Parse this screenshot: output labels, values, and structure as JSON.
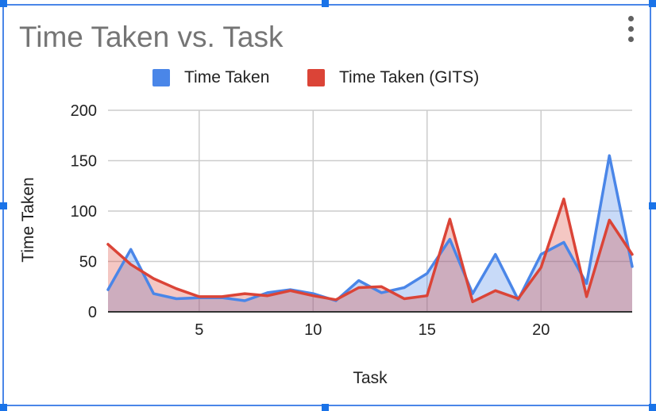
{
  "chart_data": {
    "type": "area",
    "title": "Time Taken vs. Task",
    "xlabel": "Task",
    "ylabel": "Time Taken",
    "xlim": [
      1,
      24
    ],
    "ylim": [
      0,
      200
    ],
    "x_ticks": [
      5,
      10,
      15,
      20
    ],
    "y_ticks": [
      0,
      50,
      100,
      150,
      200
    ],
    "grid": true,
    "legend_position": "top",
    "x": [
      1,
      2,
      3,
      4,
      5,
      6,
      7,
      8,
      9,
      10,
      11,
      12,
      13,
      14,
      15,
      16,
      17,
      18,
      19,
      20,
      21,
      22,
      23,
      24
    ],
    "series": [
      {
        "name": "Time Taken",
        "color": "#4a86e8",
        "fill": "#c9daf8",
        "values": [
          22,
          62,
          18,
          13,
          14,
          14,
          11,
          19,
          22,
          18,
          11,
          31,
          19,
          24,
          38,
          72,
          18,
          57,
          12,
          57,
          69,
          28,
          155,
          45
        ]
      },
      {
        "name": "Time Taken (GITS)",
        "color": "#db4437",
        "fill": "#f4c7c3",
        "values": [
          67,
          47,
          33,
          23,
          15,
          15,
          18,
          16,
          21,
          16,
          12,
          24,
          25,
          13,
          16,
          92,
          10,
          21,
          13,
          44,
          112,
          15,
          91,
          57
        ]
      }
    ]
  }
}
